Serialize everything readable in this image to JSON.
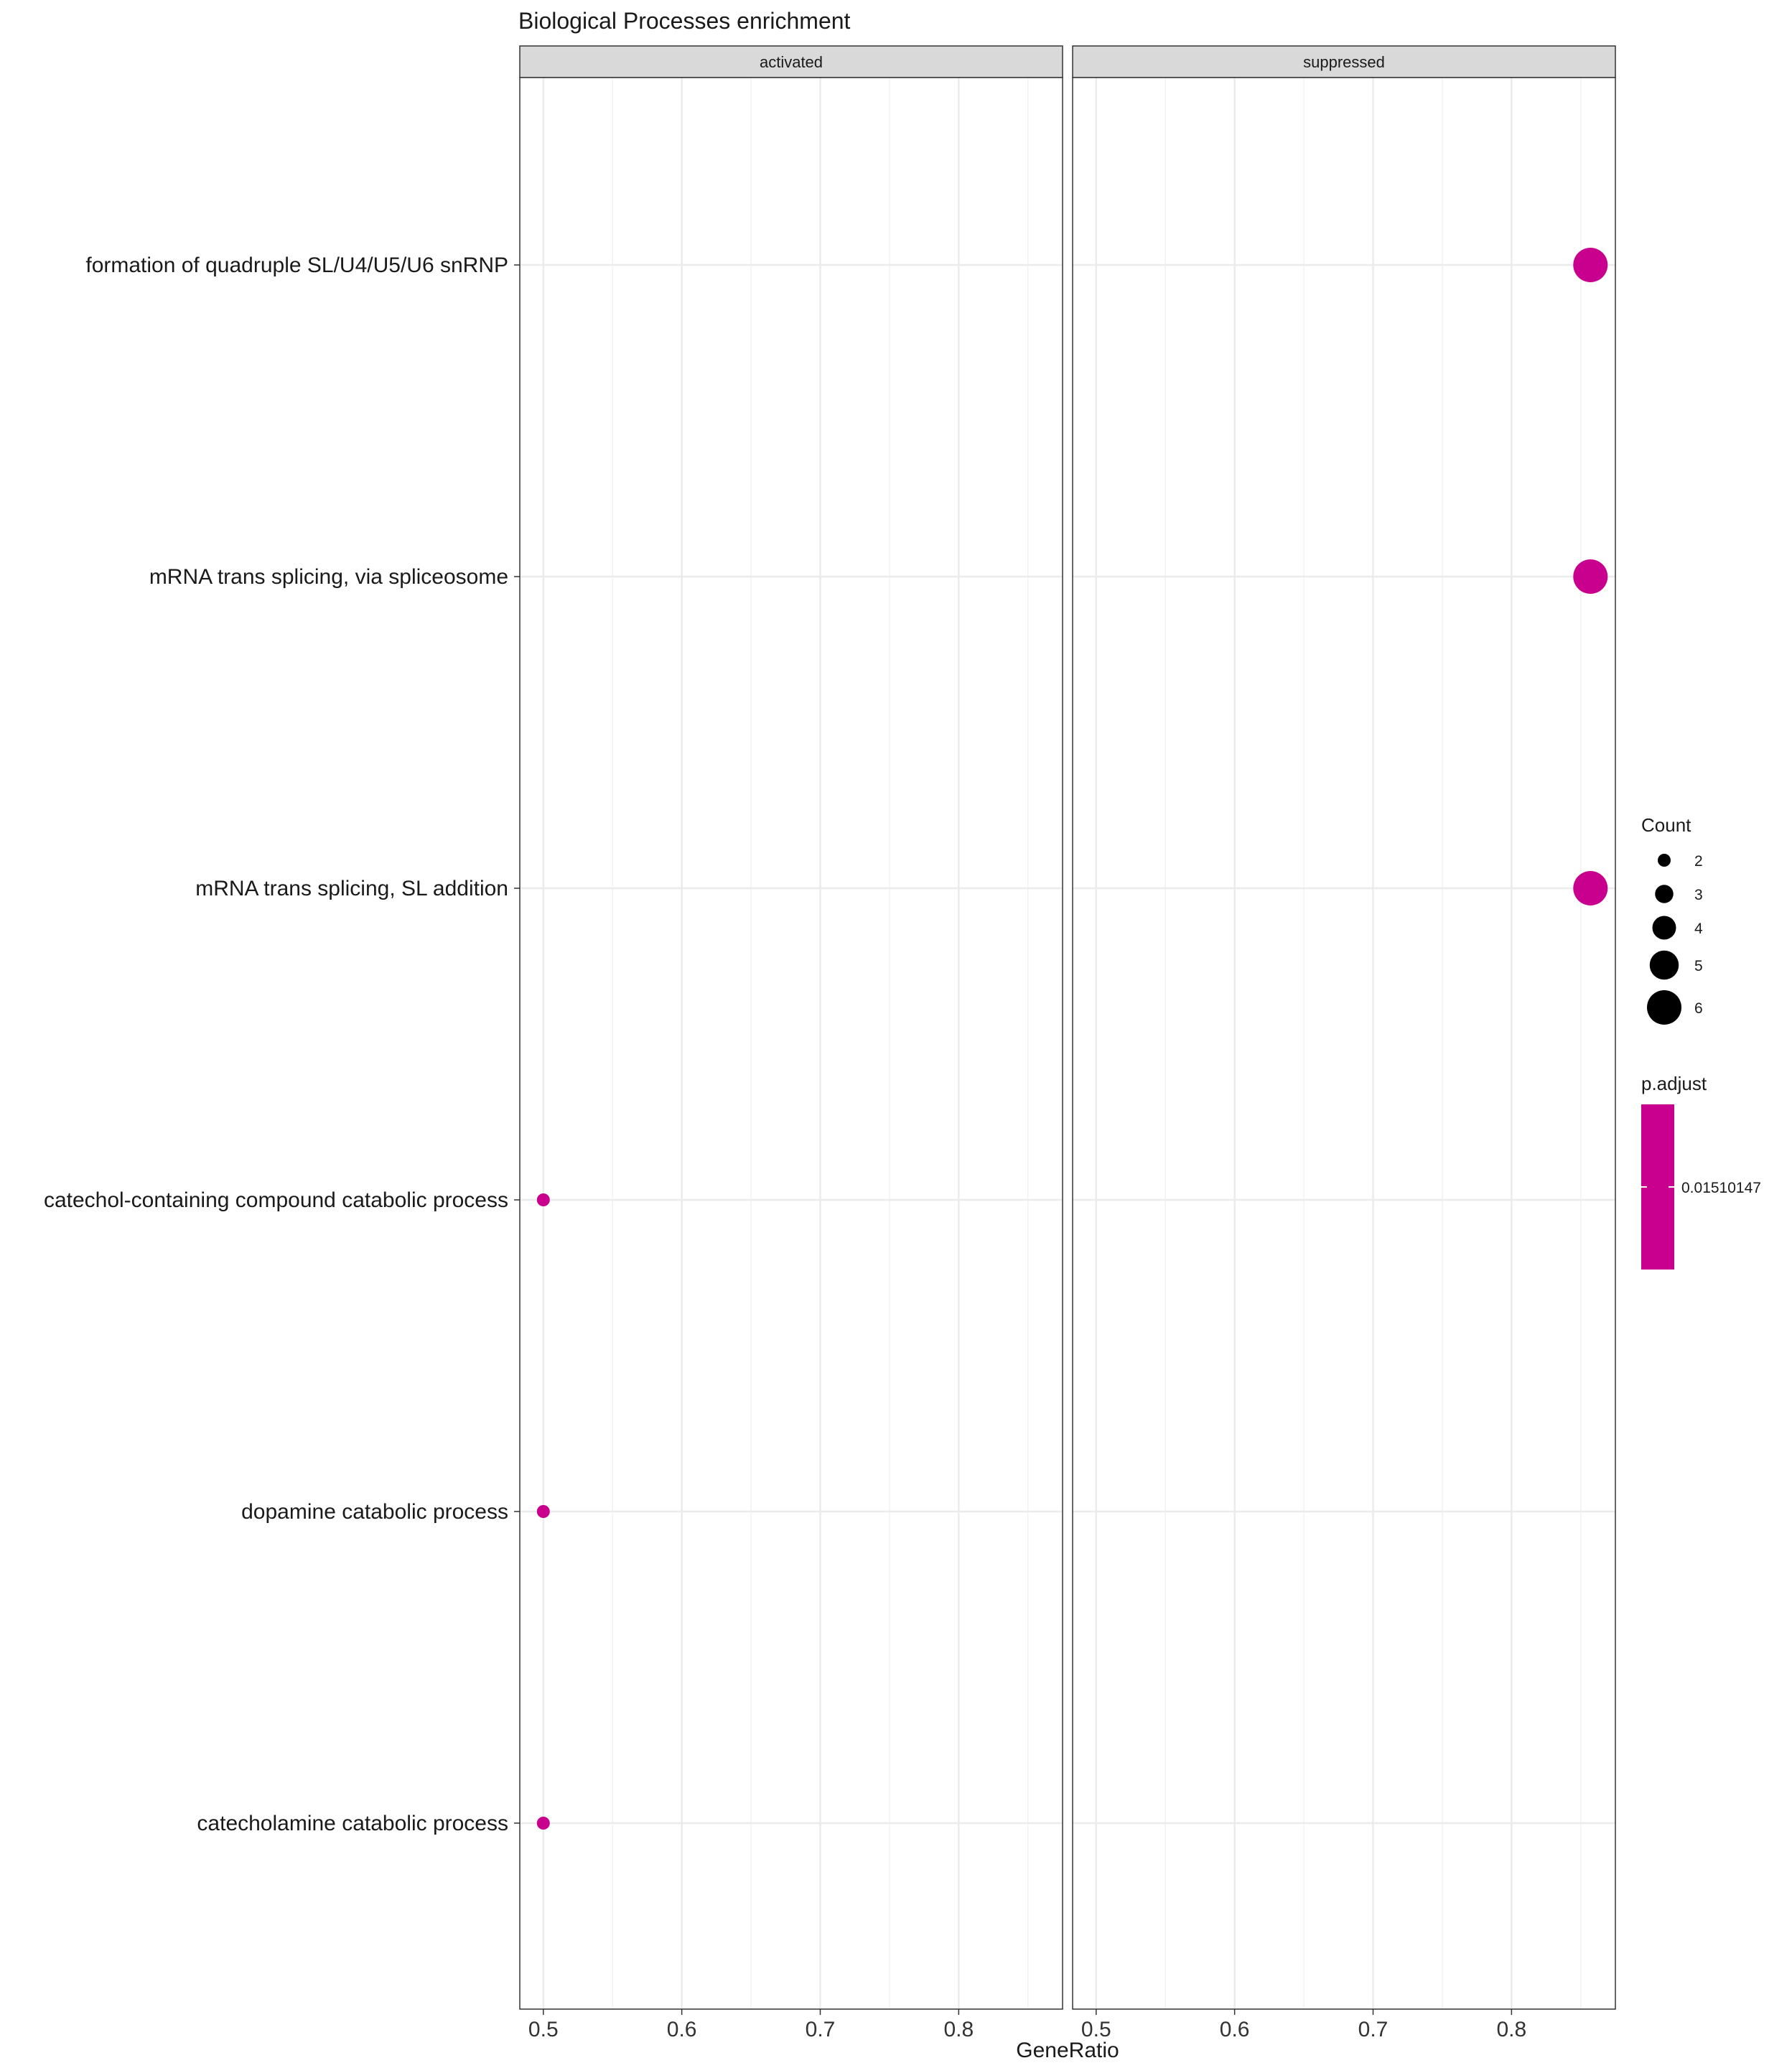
{
  "chart_data": {
    "type": "scatter",
    "title": "Biological Processes enrichment",
    "xlabel": "GeneRatio",
    "ylabel": "",
    "xlim": [
      0.483,
      0.875
    ],
    "xticks": [
      0.5,
      0.6,
      0.7,
      0.8
    ],
    "xtick_labels": [
      "0.5",
      "0.6",
      "0.7",
      "0.8"
    ],
    "facets": [
      "activated",
      "suppressed"
    ],
    "categories": [
      "formation of quadruple SL/U4/U5/U6 snRNP",
      "mRNA trans splicing, via spliceosome",
      "mRNA trans splicing, SL addition",
      "catechol-containing compound catabolic process",
      "dopamine catabolic process",
      "catecholamine catabolic process"
    ],
    "points": [
      {
        "facet": "suppressed",
        "category": "formation of quadruple SL/U4/U5/U6 snRNP",
        "x": 0.857,
        "count": 6,
        "p_adjust": 0.01510147
      },
      {
        "facet": "suppressed",
        "category": "mRNA trans splicing, via spliceosome",
        "x": 0.857,
        "count": 6,
        "p_adjust": 0.01510147
      },
      {
        "facet": "suppressed",
        "category": "mRNA trans splicing, SL addition",
        "x": 0.857,
        "count": 6,
        "p_adjust": 0.01510147
      },
      {
        "facet": "activated",
        "category": "catechol-containing compound catabolic process",
        "x": 0.5,
        "count": 2,
        "p_adjust": 0.01510147
      },
      {
        "facet": "activated",
        "category": "dopamine catabolic process",
        "x": 0.5,
        "count": 2,
        "p_adjust": 0.01510147
      },
      {
        "facet": "activated",
        "category": "catecholamine catabolic process",
        "x": 0.5,
        "count": 2,
        "p_adjust": 0.01510147
      }
    ],
    "legend": {
      "size_title": "Count",
      "size_values": [
        2,
        3,
        4,
        5,
        6
      ],
      "size_labels": [
        "2",
        "3",
        "4",
        "5",
        "6"
      ],
      "color_title": "p.adjust",
      "color_labels": [
        "0.01510147"
      ],
      "position": "right"
    },
    "grid": true,
    "point_color": "#c9008d",
    "strip_fill": "#d9d9d9",
    "grid_color": "#ebebeb"
  }
}
